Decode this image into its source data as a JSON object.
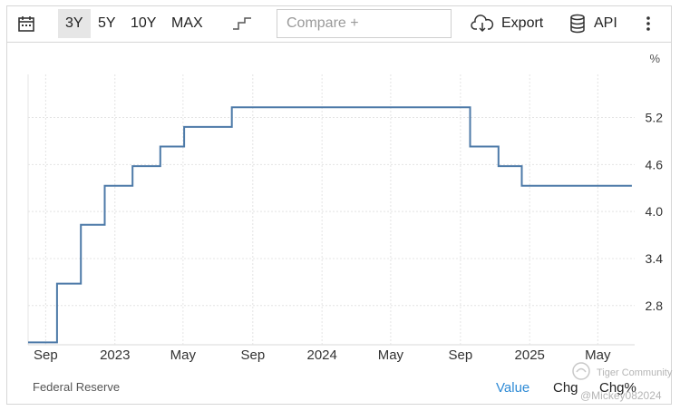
{
  "toolbar": {
    "ranges": [
      "3Y",
      "5Y",
      "10Y",
      "MAX"
    ],
    "active_range": "3Y",
    "compare_placeholder": "Compare +",
    "export_label": "Export",
    "api_label": "API"
  },
  "footer": {
    "source": "Federal Reserve",
    "value_label": "Value",
    "chg_label": "Chg",
    "chgpct_label": "Chg%"
  },
  "watermark": {
    "line1": "Tiger Community",
    "line2": "@Mickey082024"
  },
  "colors": {
    "line": "#4d7aa8",
    "active_link": "#2f8bd6",
    "grid": "#e4e4e4"
  },
  "chart_data": {
    "type": "line",
    "step": true,
    "unit_label": "%",
    "ylim": [
      2.3,
      5.75
    ],
    "yticks": [
      2.8,
      3.4,
      4.0,
      4.6,
      5.2
    ],
    "ytick_labels": [
      "2.8",
      "3.4",
      "4.0",
      "4.6",
      "5.2"
    ],
    "xlim": [
      "2022-08-01",
      "2025-07-05"
    ],
    "xticks": [
      {
        "label": "Sep",
        "date": "2022-09-01"
      },
      {
        "label": "2023",
        "date": "2023-01-01"
      },
      {
        "label": "May",
        "date": "2023-05-01"
      },
      {
        "label": "Sep",
        "date": "2023-09-01"
      },
      {
        "label": "2024",
        "date": "2024-01-01"
      },
      {
        "label": "May",
        "date": "2024-05-01"
      },
      {
        "label": "Sep",
        "date": "2024-09-01"
      },
      {
        "label": "2025",
        "date": "2025-01-01"
      },
      {
        "label": "May",
        "date": "2025-05-01"
      }
    ],
    "grid": true,
    "series": [
      {
        "x": [
          "2022-08-01",
          "2022-09-21",
          "2022-11-02",
          "2022-12-14",
          "2023-02-01",
          "2023-03-22",
          "2023-05-03",
          "2023-07-26",
          "2024-09-18",
          "2024-11-07",
          "2024-12-18",
          "2025-06-30"
        ],
        "values": [
          2.33,
          3.08,
          3.83,
          4.33,
          4.58,
          4.83,
          5.08,
          5.33,
          4.83,
          4.58,
          4.33,
          4.33
        ]
      }
    ]
  }
}
